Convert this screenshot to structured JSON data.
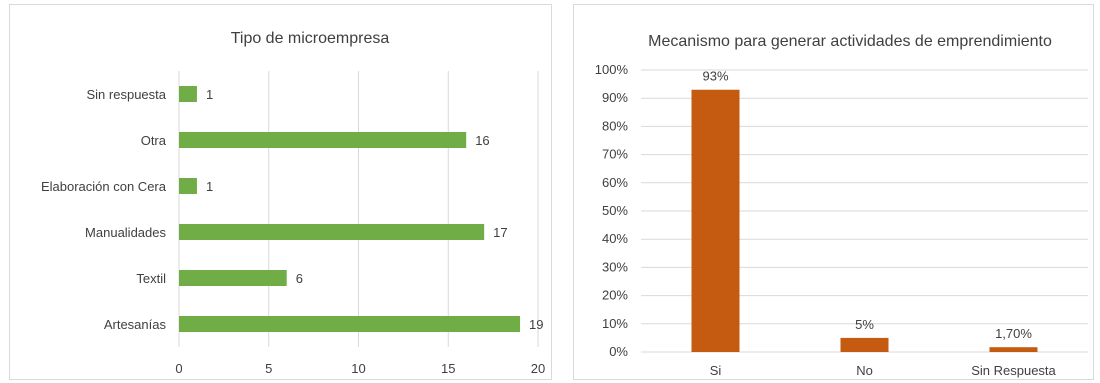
{
  "chart_data": [
    {
      "type": "bar",
      "orientation": "horizontal",
      "title": "Tipo de microempresa",
      "categories": [
        "Sin respuesta",
        "Otra",
        "Elaboración con Cera",
        "Manualidades",
        "Textil",
        "Artesanías"
      ],
      "values": [
        1,
        16,
        1,
        17,
        6,
        19
      ],
      "data_labels": [
        "1",
        "16",
        "1",
        "17",
        "6",
        "19"
      ],
      "xlim": [
        0,
        20
      ],
      "x_ticks": [
        0,
        5,
        10,
        15,
        20
      ],
      "x_tick_labels": [
        "0",
        "5",
        "10",
        "15",
        "20"
      ],
      "grid": true,
      "bar_color": "#70AD47"
    },
    {
      "type": "bar",
      "orientation": "vertical",
      "title": "Mecanismo para generar actividades de emprendimiento",
      "categories": [
        "Si",
        "No",
        "Sin Respuesta"
      ],
      "values": [
        0.93,
        0.05,
        0.017
      ],
      "data_labels": [
        "93%",
        "5%",
        "1,70%"
      ],
      "ylim": [
        0,
        1
      ],
      "y_ticks": [
        0,
        0.1,
        0.2,
        0.3,
        0.4,
        0.5,
        0.6,
        0.7,
        0.8,
        0.9,
        1.0
      ],
      "y_tick_labels": [
        "0%",
        "10%",
        "20%",
        "30%",
        "40%",
        "50%",
        "60%",
        "70%",
        "80%",
        "90%",
        "100%"
      ],
      "grid": true,
      "bar_color": "#C55A11"
    }
  ]
}
